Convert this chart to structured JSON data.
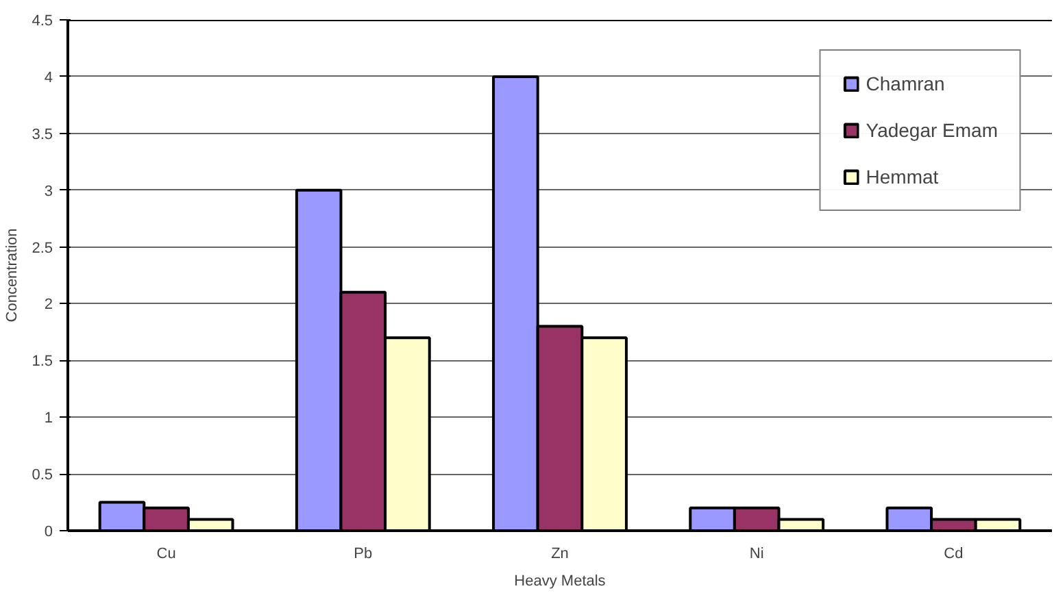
{
  "chart_data": {
    "type": "bar",
    "xlabel": "Heavy Metals",
    "ylabel": "Concentration",
    "categories": [
      "Cu",
      "Pb",
      "Zn",
      "Ni",
      "Cd"
    ],
    "series": [
      {
        "name": "Chamran",
        "color": "#9999ff",
        "values": [
          0.25,
          3.0,
          4.0,
          0.2,
          0.2
        ]
      },
      {
        "name": "Yadegar Emam",
        "color": "#993366",
        "values": [
          0.2,
          2.1,
          1.8,
          0.2,
          0.1
        ]
      },
      {
        "name": "Hemmat",
        "color": "#ffffcc",
        "values": [
          0.1,
          1.7,
          1.7,
          0.1,
          0.1
        ]
      }
    ],
    "ylim": [
      0,
      4.5
    ],
    "yticks": [
      0,
      0.5,
      1,
      1.5,
      2,
      2.5,
      3,
      3.5,
      4,
      4.5
    ],
    "grid": "y",
    "legend": "top right"
  }
}
